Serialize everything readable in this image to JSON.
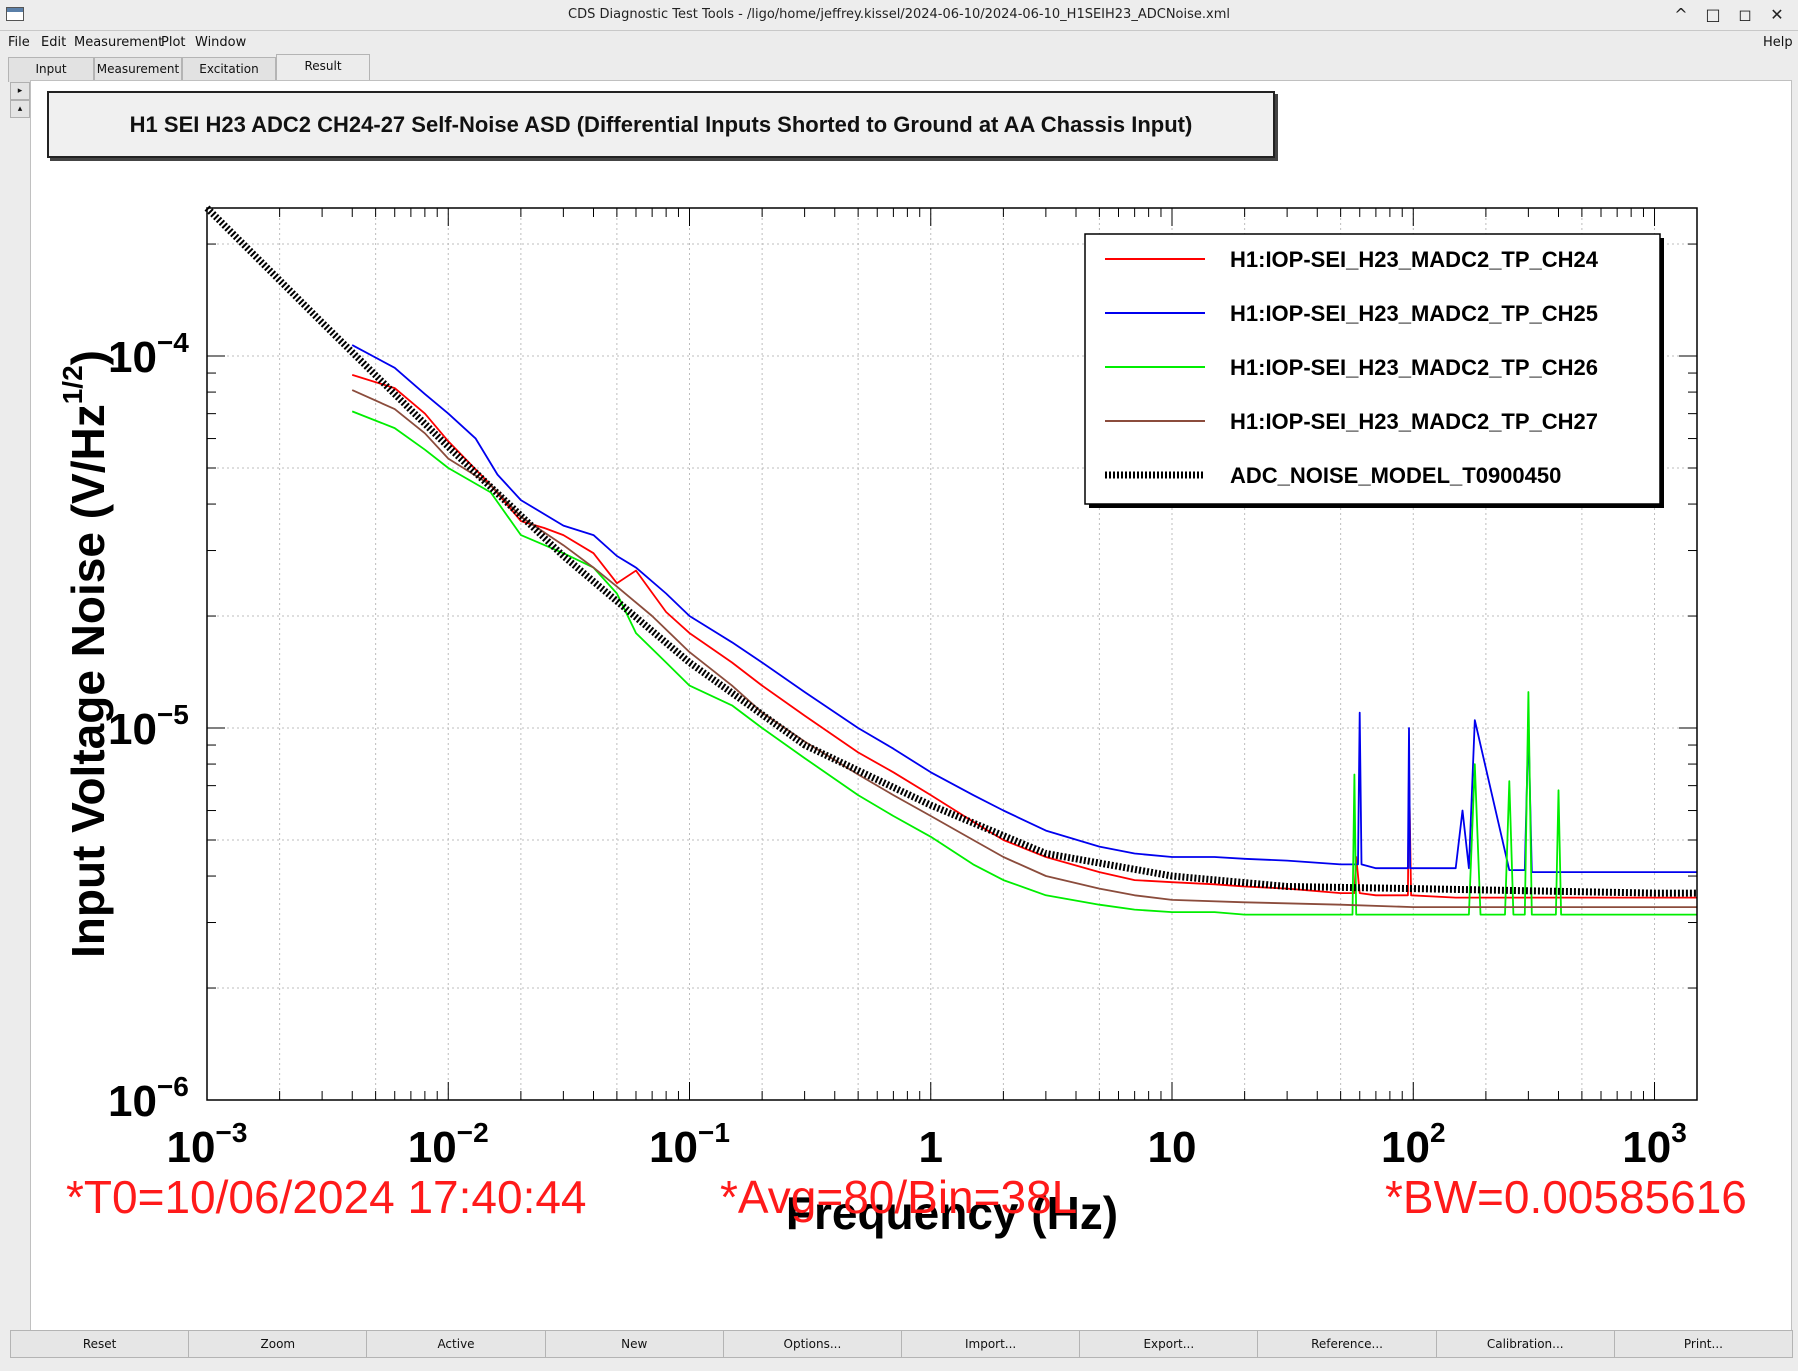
{
  "window": {
    "title": "CDS Diagnostic Test Tools - /ligo/home/jeffrey.kissel/2024-06-10/2024-06-10_H1SEIH23_ADCNoise.xml",
    "controls": [
      "^",
      "□",
      "◻",
      "✕"
    ]
  },
  "menu": {
    "file": "File",
    "edit": "Edit",
    "measurement": "Measurement",
    "plot": "Plot",
    "window": "Window",
    "help": "Help"
  },
  "tabs": [
    "Input",
    "Measurement",
    "Excitation",
    "Result"
  ],
  "plot": {
    "title": "H1 SEI H23 ADC2 CH24-27 Self-Noise ASD (Differential Inputs Shorted to Ground at AA Chassis Input)"
  },
  "chart_data": {
    "type": "line",
    "title": "H1 SEI H23 ADC2 CH24-27 Self-Noise ASD (Differential Inputs Shorted to Ground at AA Chassis Input)",
    "xlabel": "Frequency (Hz)",
    "ylabel_main": "Input Voltage Noise (V/Hz",
    "ylabel_sup": "1/2",
    "ylabel_close": ")",
    "x_scale": "log",
    "y_scale": "log",
    "xlim": [
      0.001,
      1500
    ],
    "ylim": [
      1e-06,
      0.00025
    ],
    "grid": true,
    "legend_position": "top-right",
    "x_ticks": [
      {
        "value": 0.001,
        "base": "10",
        "exp": "−3"
      },
      {
        "value": 0.01,
        "base": "10",
        "exp": "−2"
      },
      {
        "value": 0.1,
        "base": "10",
        "exp": "−1"
      },
      {
        "value": 1,
        "base": "1",
        "exp": ""
      },
      {
        "value": 10,
        "base": "10",
        "exp": ""
      },
      {
        "value": 100,
        "base": "10",
        "exp": "2"
      },
      {
        "value": 1000,
        "base": "10",
        "exp": "3"
      }
    ],
    "y_ticks": [
      {
        "value": 0.0001,
        "base": "10",
        "exp": "−4"
      },
      {
        "value": 1e-05,
        "base": "10",
        "exp": "−5"
      },
      {
        "value": 1e-06,
        "base": "10",
        "exp": "−6"
      }
    ],
    "series": [
      {
        "name": "H1:IOP-SEI_H23_MADC2_TP_CH24",
        "color": "#ff0000",
        "style": "solid",
        "x": [
          0.004,
          0.006,
          0.008,
          0.01,
          0.015,
          0.02,
          0.025,
          0.03,
          0.04,
          0.05,
          0.06,
          0.08,
          0.1,
          0.15,
          0.2,
          0.3,
          0.5,
          0.7,
          1,
          1.5,
          2,
          3,
          5,
          7,
          10,
          15,
          20,
          30,
          50,
          57,
          58,
          60,
          70,
          95,
          96,
          98,
          150,
          200,
          300,
          500,
          1000,
          1500
        ],
        "y": [
          8.9e-05,
          8.2e-05,
          7e-05,
          5.9e-05,
          4.5e-05,
          3.6e-05,
          3.45e-05,
          3.3e-05,
          2.95e-05,
          2.45e-05,
          2.65e-05,
          2.05e-05,
          1.8e-05,
          1.5e-05,
          1.3e-05,
          1.08e-05,
          8.6e-06,
          7.6e-06,
          6.6e-06,
          5.6e-06,
          5e-06,
          4.5e-06,
          4.1e-06,
          3.9e-06,
          3.85e-06,
          3.8e-06,
          3.75e-06,
          3.7e-06,
          3.6e-06,
          3.6e-06,
          4.5e-06,
          3.6e-06,
          3.55e-06,
          3.55e-06,
          7.8e-06,
          3.55e-06,
          3.5e-06,
          3.5e-06,
          3.5e-06,
          3.5e-06,
          3.5e-06,
          3.5e-06
        ]
      },
      {
        "name": "H1:IOP-SEI_H23_MADC2_TP_CH25",
        "color": "#0000ee",
        "style": "solid",
        "x": [
          0.004,
          0.006,
          0.008,
          0.01,
          0.013,
          0.016,
          0.02,
          0.03,
          0.04,
          0.05,
          0.06,
          0.08,
          0.1,
          0.15,
          0.2,
          0.3,
          0.5,
          0.7,
          1,
          1.5,
          2,
          3,
          5,
          7,
          10,
          15,
          20,
          30,
          50,
          59,
          60,
          61,
          70,
          95,
          96,
          97,
          150,
          160,
          170,
          180,
          250,
          290,
          300,
          310,
          500,
          1000,
          1500
        ],
        "y": [
          0.000107,
          9.3e-05,
          7.9e-05,
          7e-05,
          6e-05,
          4.8e-05,
          4.1e-05,
          3.5e-05,
          3.3e-05,
          2.9e-05,
          2.7e-05,
          2.3e-05,
          2e-05,
          1.7e-05,
          1.5e-05,
          1.25e-05,
          1e-05,
          8.8e-06,
          7.6e-06,
          6.6e-06,
          6e-06,
          5.3e-06,
          4.8e-06,
          4.6e-06,
          4.5e-06,
          4.5e-06,
          4.45e-06,
          4.4e-06,
          4.3e-06,
          4.3e-06,
          1.1e-05,
          4.3e-06,
          4.2e-06,
          4.2e-06,
          1e-05,
          4.2e-06,
          4.2e-06,
          6e-06,
          4.2e-06,
          1.05e-05,
          4.15e-06,
          4.15e-06,
          1.02e-05,
          4.1e-06,
          4.1e-06,
          4.1e-06,
          4.1e-06
        ]
      },
      {
        "name": "H1:IOP-SEI_H23_MADC2_TP_CH26",
        "color": "#00ee00",
        "style": "solid",
        "x": [
          0.004,
          0.006,
          0.008,
          0.01,
          0.015,
          0.02,
          0.03,
          0.04,
          0.05,
          0.06,
          0.08,
          0.1,
          0.15,
          0.2,
          0.3,
          0.5,
          0.7,
          1,
          1.5,
          2,
          3,
          5,
          7,
          10,
          15,
          20,
          30,
          50,
          56,
          57,
          58,
          70,
          100,
          170,
          180,
          190,
          240,
          250,
          260,
          290,
          300,
          310,
          390,
          400,
          410,
          500,
          1000,
          1500
        ],
        "y": [
          7.1e-05,
          6.4e-05,
          5.6e-05,
          5e-05,
          4.3e-05,
          3.3e-05,
          2.95e-05,
          2.7e-05,
          2.3e-05,
          1.8e-05,
          1.5e-05,
          1.3e-05,
          1.15e-05,
          1e-05,
          8.3e-06,
          6.6e-06,
          5.8e-06,
          5.1e-06,
          4.3e-06,
          3.9e-06,
          3.55e-06,
          3.35e-06,
          3.25e-06,
          3.2e-06,
          3.2e-06,
          3.15e-06,
          3.15e-06,
          3.15e-06,
          3.15e-06,
          7.5e-06,
          3.15e-06,
          3.15e-06,
          3.15e-06,
          3.15e-06,
          8e-06,
          3.15e-06,
          3.15e-06,
          7.2e-06,
          3.15e-06,
          3.15e-06,
          1.25e-05,
          3.15e-06,
          3.15e-06,
          6.8e-06,
          3.15e-06,
          3.15e-06,
          3.15e-06,
          3.15e-06
        ]
      },
      {
        "name": "H1:IOP-SEI_H23_MADC2_TP_CH27",
        "color": "#8b4c3c",
        "style": "solid",
        "x": [
          0.004,
          0.006,
          0.008,
          0.01,
          0.015,
          0.02,
          0.03,
          0.04,
          0.05,
          0.07,
          0.1,
          0.15,
          0.2,
          0.3,
          0.5,
          0.7,
          1,
          1.5,
          2,
          3,
          5,
          7,
          10,
          20,
          50,
          100,
          200,
          500,
          1000,
          1500
        ],
        "y": [
          8.1e-05,
          7.2e-05,
          6.2e-05,
          5.3e-05,
          4.5e-05,
          3.7e-05,
          3.1e-05,
          2.7e-05,
          2.4e-05,
          2e-05,
          1.6e-05,
          1.3e-05,
          1.1e-05,
          9.2e-06,
          7.5e-06,
          6.6e-06,
          5.8e-06,
          5e-06,
          4.5e-06,
          4e-06,
          3.7e-06,
          3.55e-06,
          3.45e-06,
          3.4e-06,
          3.35e-06,
          3.3e-06,
          3.3e-06,
          3.3e-06,
          3.3e-06,
          3.3e-06
        ]
      },
      {
        "name": "ADC_NOISE_MODEL_T0900450",
        "color": "#000000",
        "style": "dashed-thick",
        "x": [
          0.001,
          0.003,
          0.01,
          0.03,
          0.1,
          0.3,
          1,
          3,
          10,
          30,
          100,
          300,
          1000,
          1500
        ],
        "y": [
          0.00025,
          0.000123,
          5.7e-05,
          2.9e-05,
          1.5e-05,
          9e-06,
          6.2e-06,
          4.6e-06,
          4e-06,
          3.75e-06,
          3.7e-06,
          3.65e-06,
          3.6e-06,
          3.6e-06
        ]
      }
    ]
  },
  "status": {
    "t0": "*T0=10/06/2024 17:40:44",
    "avg": "*Avg=80/Bin=38L",
    "bw": "*BW=0.00585616"
  },
  "buttons": [
    "Reset",
    "Zoom",
    "Active",
    "New",
    "Options...",
    "Import...",
    "Export...",
    "Reference...",
    "Calibration...",
    "Print..."
  ]
}
